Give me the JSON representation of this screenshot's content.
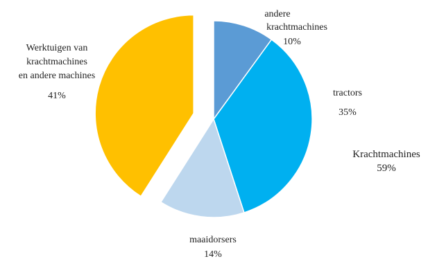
{
  "chart_data": {
    "type": "pie",
    "title": "",
    "slices": [
      {
        "label": "andere krachtmachines",
        "value": 10,
        "display": "10%",
        "color": "#5b9bd5",
        "group": "Krachtmachines",
        "exploded": false
      },
      {
        "label": "tractors",
        "value": 35,
        "display": "35%",
        "color": "#00b0f0",
        "group": "Krachtmachines",
        "exploded": false
      },
      {
        "label": "maaidorsers",
        "value": 14,
        "display": "14%",
        "color": "#bdd7ee",
        "group": "Krachtmachines",
        "exploded": false
      },
      {
        "label": "Werktuigen van krachtmachines en andere machines",
        "value": 41,
        "display": "41%",
        "color": "#ffc000",
        "group": "",
        "exploded": true
      }
    ],
    "groups": [
      {
        "label": "Krachtmachines",
        "value": 59,
        "display": "59%"
      }
    ],
    "text": {
      "andere_line1": "andere",
      "andere_line2": "krachtmachines",
      "andere_pct": "10%",
      "tractors": "tractors",
      "tractors_pct": "35%",
      "maaidorsers": "maaidorsers",
      "maaidorsers_pct": "14%",
      "werk_line1": "Werktuigen van",
      "werk_line2": "krachtmachines",
      "werk_line3": "en andere machines",
      "werk_pct": "41%",
      "group_label": "Krachtmachines",
      "group_pct": "59%"
    }
  }
}
